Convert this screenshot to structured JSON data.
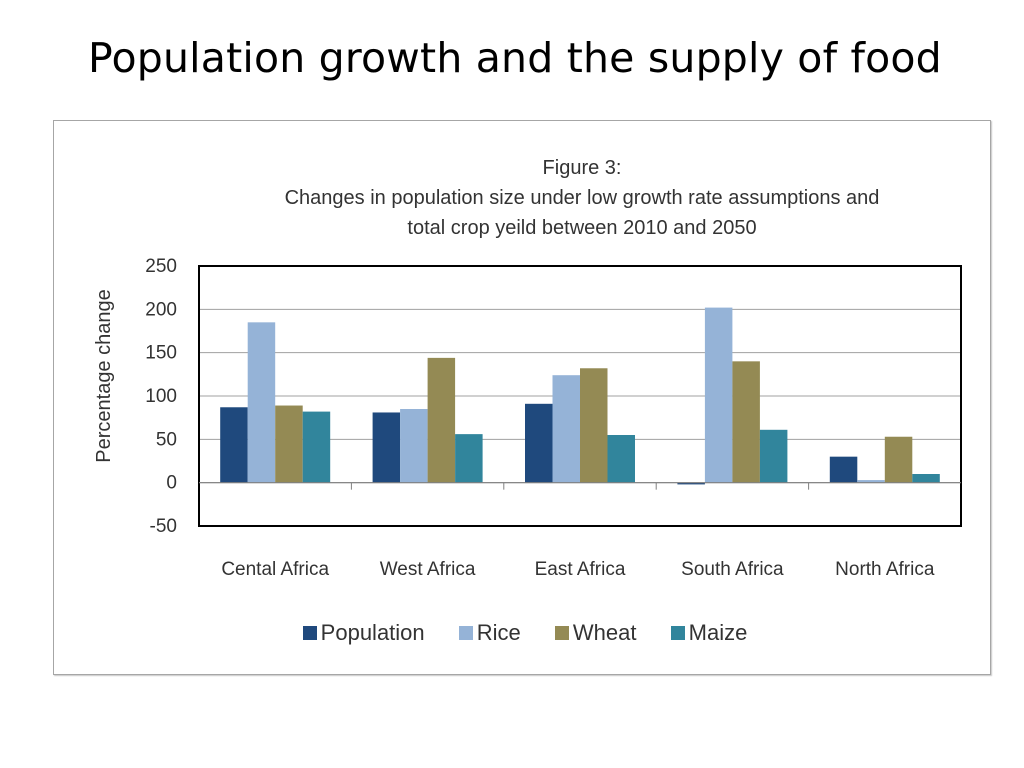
{
  "slide": {
    "title": "Population growth and the supply of food"
  },
  "chart_data": {
    "type": "bar",
    "title_lines": [
      "Figure 3:",
      "Changes in population size under low growth rate assumptions and",
      "total crop yeild between  2010 and 2050"
    ],
    "ylabel": "Percentage change",
    "xlabel": "",
    "ylim": [
      -50,
      250
    ],
    "yticks": [
      250,
      200,
      150,
      100,
      50,
      0,
      -50
    ],
    "grid": true,
    "legend_position": "bottom",
    "categories": [
      "Cental Africa",
      "West Africa",
      "East Africa",
      "South Africa",
      "North Africa"
    ],
    "series": [
      {
        "name": "Population",
        "color": "#1f497d",
        "values": [
          87,
          81,
          91,
          -2,
          30
        ]
      },
      {
        "name": "Rice",
        "color": "#95b3d7",
        "values": [
          185,
          85,
          124,
          202,
          3
        ]
      },
      {
        "name": "Wheat",
        "color": "#948a54",
        "values": [
          89,
          144,
          132,
          140,
          53
        ]
      },
      {
        "name": "Maize",
        "color": "#31859c",
        "values": [
          82,
          56,
          55,
          61,
          10
        ]
      }
    ]
  }
}
